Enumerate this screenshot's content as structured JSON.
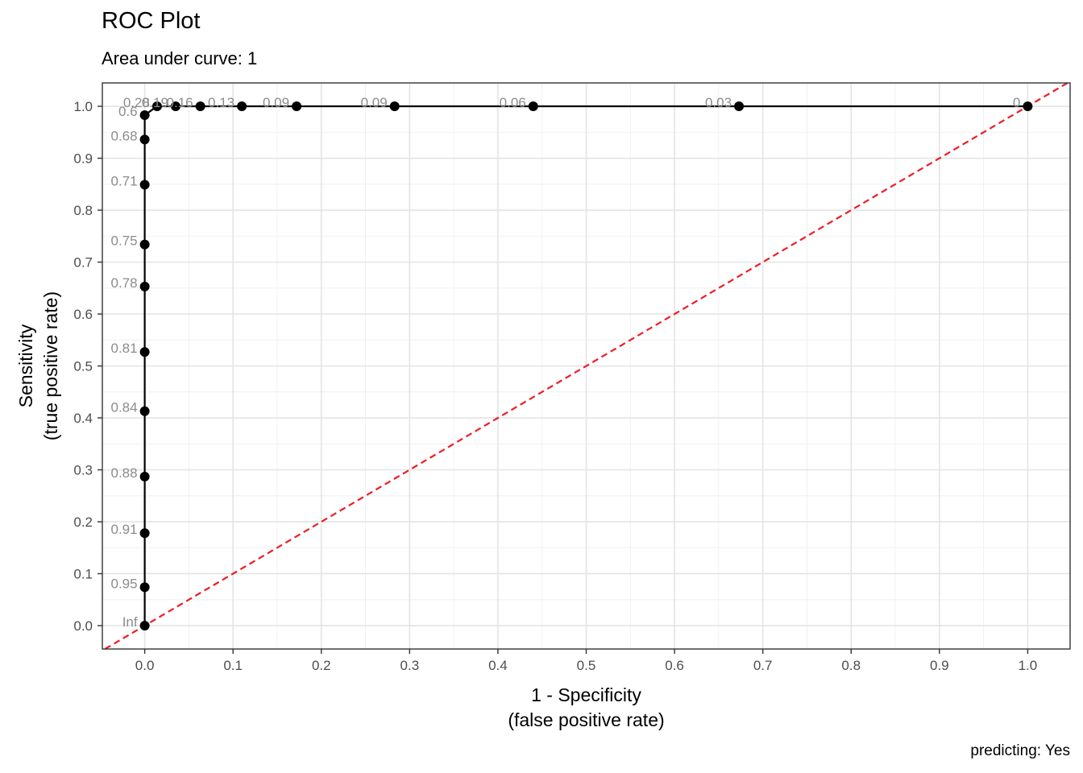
{
  "header": {
    "title": "ROC Plot",
    "subtitle": "Area under curve: 1"
  },
  "caption": "predicting: Yes",
  "chart_data": {
    "type": "line",
    "title": "ROC Plot",
    "subtitle": "Area under curve: 1",
    "xlabel": [
      "1 - Specificity",
      "(false positive rate)"
    ],
    "ylabel": [
      "Sensitivity",
      "(true positive rate)"
    ],
    "xlim": [
      -0.048,
      1.048
    ],
    "ylim": [
      -0.045,
      1.045
    ],
    "x_ticks": [
      0.0,
      0.1,
      0.2,
      0.3,
      0.4,
      0.5,
      0.6,
      0.7,
      0.8,
      0.9,
      1.0
    ],
    "y_ticks": [
      0.0,
      0.1,
      0.2,
      0.3,
      0.4,
      0.5,
      0.6,
      0.7,
      0.8,
      0.9,
      1.0
    ],
    "x_tick_labels": [
      "0.0",
      "0.1",
      "0.2",
      "0.3",
      "0.4",
      "0.5",
      "0.6",
      "0.7",
      "0.8",
      "0.9",
      "1.0"
    ],
    "y_tick_labels": [
      "0.0",
      "0.1",
      "0.2",
      "0.3",
      "0.4",
      "0.5",
      "0.6",
      "0.7",
      "0.8",
      "0.9",
      "1.0"
    ],
    "grid": true,
    "reference_line": {
      "from": [
        0,
        0
      ],
      "to": [
        1,
        1
      ],
      "color": "#ee1c25",
      "style": "dashed"
    },
    "series": [
      {
        "color": "#000000",
        "points": [
          {
            "x": 0.0,
            "y": 0.0,
            "label": "Inf"
          },
          {
            "x": 0.0,
            "y": 0.074,
            "label": "0.95"
          },
          {
            "x": 0.0,
            "y": 0.178,
            "label": "0.91"
          },
          {
            "x": 0.0,
            "y": 0.287,
            "label": "0.88"
          },
          {
            "x": 0.0,
            "y": 0.413,
            "label": "0.84"
          },
          {
            "x": 0.0,
            "y": 0.527,
            "label": "0.81"
          },
          {
            "x": 0.0,
            "y": 0.653,
            "label": "0.78"
          },
          {
            "x": 0.0,
            "y": 0.734,
            "label": "0.75"
          },
          {
            "x": 0.0,
            "y": 0.849,
            "label": "0.71"
          },
          {
            "x": 0.0,
            "y": 0.936,
            "label": "0.68"
          },
          {
            "x": 0.0,
            "y": 0.983,
            "label": "0.6"
          },
          {
            "x": 0.014,
            "y": 1.0,
            "label": "0.28"
          },
          {
            "x": 0.035,
            "y": 1.0,
            "label": "0.19"
          },
          {
            "x": 0.063,
            "y": 1.0,
            "label": "0.16"
          },
          {
            "x": 0.11,
            "y": 1.0,
            "label": "0.13"
          },
          {
            "x": 0.172,
            "y": 1.0,
            "label": "0.09"
          },
          {
            "x": 0.283,
            "y": 1.0,
            "label": "0.09"
          },
          {
            "x": 0.44,
            "y": 1.0,
            "label": "0.06"
          },
          {
            "x": 0.673,
            "y": 1.0,
            "label": "0.03"
          },
          {
            "x": 1.0,
            "y": 1.0,
            "label": "0"
          }
        ]
      }
    ]
  }
}
